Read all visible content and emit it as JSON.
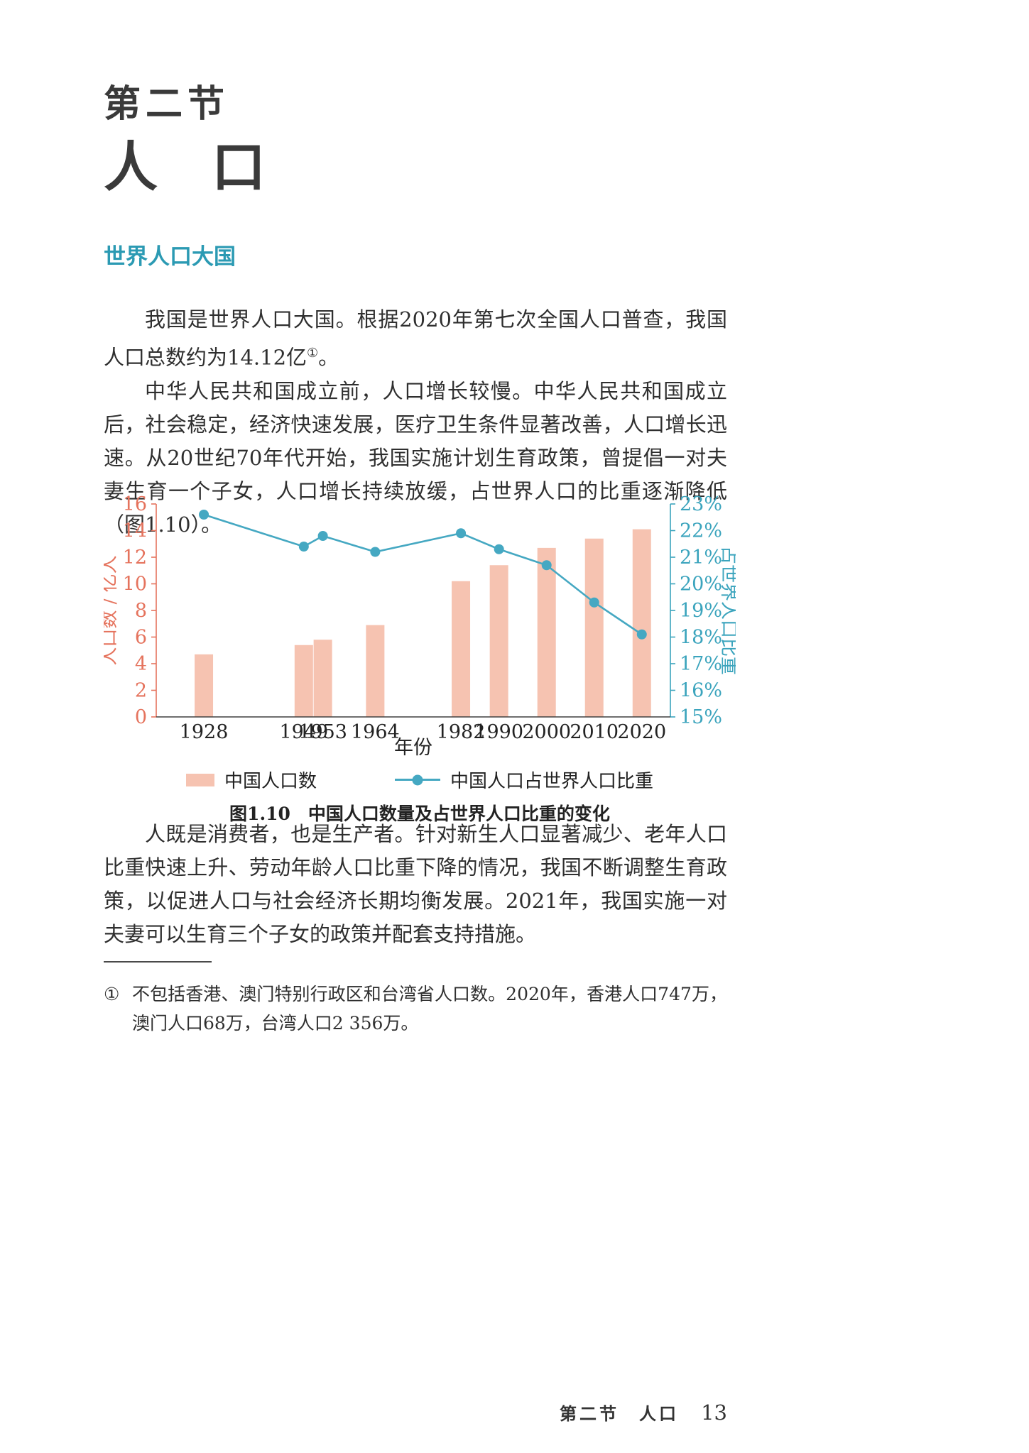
{
  "page": {
    "section_label": "第二节",
    "title": "人　口",
    "heading": "世界人口大国",
    "heading_color": "#2b9ab3",
    "p1_a": "我国是世界人口大国。根据2020年第七次全国人口普查，我国人口总数约为14.12亿",
    "p1_sup": "①",
    "p1_b": "。",
    "p2": "中华人民共和国成立前，人口增长较慢。中华人民共和国成立后，社会稳定，经济快速发展，医疗卫生条件显著改善，人口增长迅速。从20世纪70年代开始，我国实施计划生育政策，曾提倡一对夫妻生育一个子女，人口增长持续放缓，占世界人口的比重逐渐降低（图1.10）。",
    "p3": "人既是消费者，也是生产者。针对新生人口显著减少、老年人口比重快速上升、劳动年龄人口比重下降的情况，我国不断调整生育政策，以促进人口与社会经济长期均衡发展。2021年，我国实施一对夫妻可以生育三个子女的政策并配套支持措施。",
    "footnote_marker": "①",
    "footnote_text": "不包括香港、澳门特别行政区和台湾省人口数。2020年，香港人口747万，澳门人口68万，台湾人口2 356万。",
    "footer": {
      "section": "第二节　人口",
      "page_number": "13"
    }
  },
  "chart_data": {
    "type": "bar",
    "subtype": "bar+line dual axis",
    "caption": "图1.10　中国人口数量及占世界人口比重的变化",
    "x_years": [
      1928,
      1949,
      1953,
      1964,
      1982,
      1990,
      2000,
      2010,
      2020
    ],
    "series": [
      {
        "name": "中国人口数",
        "type": "bar",
        "axis": "left",
        "color": "#f6c3b1",
        "values": [
          4.7,
          5.4,
          5.8,
          6.9,
          10.2,
          11.4,
          12.7,
          13.4,
          14.1
        ]
      },
      {
        "name": "中国人口占世界人口比重",
        "type": "line",
        "axis": "right",
        "color": "#45a8c2",
        "values": [
          22.6,
          21.4,
          21.8,
          21.2,
          21.9,
          21.3,
          20.7,
          19.3,
          18.1
        ]
      }
    ],
    "left_axis": {
      "label": "人口数 / 亿人",
      "min": 0,
      "max": 16,
      "step": 2,
      "unit": "",
      "color": "#e5735d"
    },
    "right_axis": {
      "label": "占世界人口比重",
      "min": 15,
      "max": 23,
      "step": 1,
      "unit": "%",
      "color": "#3ba4bd"
    },
    "x_axis": {
      "label": "年份",
      "range": [
        1918,
        2026
      ],
      "color": "#3f3f3f"
    },
    "grid": false,
    "legend_position": "bottom"
  }
}
